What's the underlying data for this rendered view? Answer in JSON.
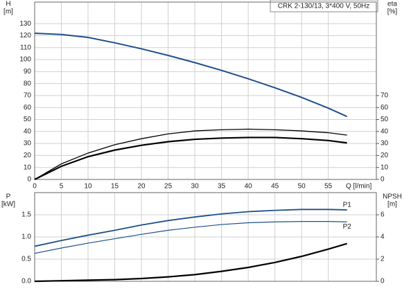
{
  "chart_data": [
    {
      "type": "line",
      "title": "CRK 2-130/13, 3*400 V, 50Hz",
      "y_label": "H",
      "y_unit": "[m]",
      "y2_label": "eta",
      "y2_unit": "[%]",
      "x_label": "Q [l/min]",
      "x": [
        0,
        5,
        10,
        15,
        20,
        25,
        30,
        35,
        40,
        45,
        50,
        55,
        58.5
      ],
      "xlim": [
        0,
        64
      ],
      "xticks": [
        0,
        5,
        10,
        15,
        20,
        25,
        30,
        35,
        40,
        45,
        50,
        55
      ],
      "ylim": [
        0,
        148
      ],
      "yticks": [
        0,
        10,
        20,
        30,
        40,
        50,
        60,
        70,
        80,
        90,
        100,
        110,
        120,
        130
      ],
      "y2lim": [
        0,
        148
      ],
      "y2ticks": [
        0,
        10,
        20,
        30,
        40,
        50,
        60,
        70
      ],
      "grid": true,
      "series": [
        {
          "color": "#1d4f8a",
          "width": 2,
          "values": [
            122,
            121,
            118.5,
            114,
            109,
            103.5,
            97.5,
            91,
            84,
            76.5,
            68.5,
            59.5,
            52.5
          ]
        },
        {
          "color": "#000000",
          "width": 1.3,
          "axis": "y2",
          "values": [
            0,
            13,
            22,
            29,
            34,
            38,
            40.5,
            41.5,
            42,
            41.5,
            40.5,
            39,
            37
          ]
        },
        {
          "color": "#000000",
          "width": 2.2,
          "axis": "y2",
          "values": [
            0,
            11,
            19,
            24.5,
            28.5,
            31.5,
            33.5,
            34.5,
            35,
            35,
            34,
            32.5,
            30.5
          ]
        }
      ]
    },
    {
      "type": "line",
      "y_label": "P",
      "y_unit": "[kW]",
      "y2_label": "NPSH",
      "y2_unit": "[m]",
      "x": [
        0,
        5,
        10,
        15,
        20,
        25,
        30,
        35,
        40,
        45,
        50,
        55,
        58.5
      ],
      "xlim": [
        0,
        64
      ],
      "xticks": [
        0,
        5,
        10,
        15,
        20,
        25,
        30,
        35,
        40,
        45,
        50,
        55
      ],
      "ylim": [
        0,
        2
      ],
      "yticks": [
        {
          "value": 0,
          "label": "0.0"
        },
        0.5,
        {
          "value": 1,
          "label": "1.0"
        },
        1.5
      ],
      "y2lim": [
        0,
        8
      ],
      "y2ticks": [
        0,
        2,
        4,
        6
      ],
      "grid": true,
      "series": [
        {
          "name": "P1",
          "color": "#1d4f8a",
          "width": 1.8,
          "values": [
            0.79,
            0.92,
            1.04,
            1.15,
            1.27,
            1.37,
            1.45,
            1.52,
            1.57,
            1.6,
            1.62,
            1.62,
            1.61
          ]
        },
        {
          "name": "P2",
          "color": "#1d4f8a",
          "width": 1.2,
          "values": [
            0.63,
            0.75,
            0.86,
            0.96,
            1.06,
            1.15,
            1.22,
            1.28,
            1.32,
            1.34,
            1.35,
            1.35,
            1.34
          ]
        },
        {
          "color": "#000000",
          "width": 2.2,
          "axis": "y2",
          "values": [
            0,
            0.05,
            0.1,
            0.15,
            0.25,
            0.4,
            0.6,
            0.9,
            1.25,
            1.7,
            2.25,
            2.9,
            3.4
          ]
        }
      ]
    }
  ]
}
